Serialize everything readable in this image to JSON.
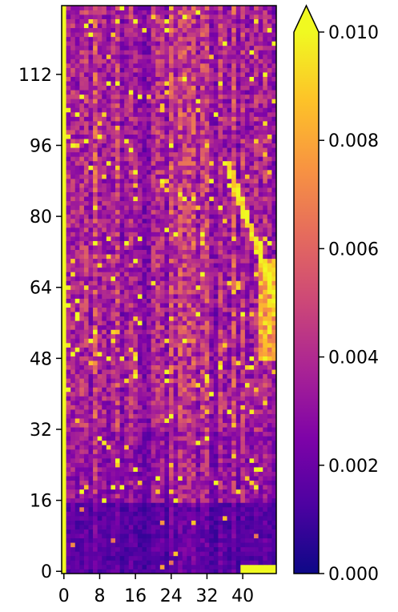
{
  "chart_data": {
    "type": "heatmap",
    "title": "",
    "xlabel": "",
    "ylabel": "",
    "x_range": [
      -0.5,
      47.5
    ],
    "y_range": [
      -0.5,
      127.5
    ],
    "x_ticks": [
      0,
      8,
      16,
      24,
      32,
      40
    ],
    "y_ticks": [
      0,
      16,
      32,
      48,
      64,
      80,
      96,
      112
    ],
    "colormap": "plasma",
    "colorbar": {
      "vmin": 0.0,
      "vmax": 0.01,
      "extend": "max",
      "ticks": [
        "0.000",
        "0.002",
        "0.004",
        "0.006",
        "0.008",
        "0.010"
      ]
    },
    "grid_shape": {
      "rows": 128,
      "cols": 48
    },
    "description_of_values": "Causal (lower-triangular style) attention map: column 0 saturated (>=0.010) along all rows, diagonal elements bright, rows 0-16 mostly dark (~0.001), rows 16-128 mixed purple/orange (0.002-0.006) with scattered yellow cells near 0.009-0.010; strong bright diagonal streaks near x=38-47 around y=56-90."
  }
}
